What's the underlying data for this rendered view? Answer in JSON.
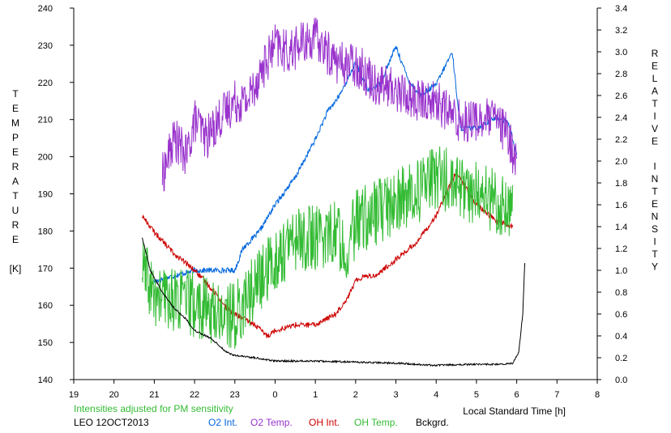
{
  "chart_data": {
    "type": "line",
    "title": "",
    "xlabel": "Local Standard Time [h]",
    "ylabel_left": [
      "T",
      "E",
      "M",
      "P",
      "E",
      "R",
      "A",
      "T",
      "U",
      "R",
      "E",
      "",
      "[K]"
    ],
    "ylabel_right": [
      "R",
      "E",
      "L",
      "A",
      "T",
      "I",
      "V",
      "E",
      "",
      "I",
      "N",
      "T",
      "E",
      "N",
      "S",
      "I",
      "T",
      "Y"
    ],
    "xlim": [
      19,
      32
    ],
    "x_ticks": [
      19,
      20,
      21,
      22,
      23,
      24,
      25,
      26,
      27,
      28,
      29,
      30,
      31,
      32
    ],
    "x_tick_labels": [
      "19",
      "20",
      "21",
      "22",
      "23",
      "0",
      "1",
      "2",
      "3",
      "4",
      "5",
      "6",
      "7",
      "8"
    ],
    "ylim_left": [
      140,
      240
    ],
    "y_ticks_left": [
      140,
      150,
      160,
      170,
      180,
      190,
      200,
      210,
      220,
      230,
      240
    ],
    "y_tick_labels_left": [
      "140",
      "150",
      "160",
      "170",
      "180",
      "190",
      "200",
      "210",
      "220",
      "230",
      "240"
    ],
    "ylim_right": [
      0.0,
      3.4
    ],
    "y_ticks_right": [
      0.0,
      0.2,
      0.4,
      0.6,
      0.8,
      1.0,
      1.2,
      1.4,
      1.6,
      1.8,
      2.0,
      2.2,
      2.4,
      2.6,
      2.8,
      3.0,
      3.2,
      3.4
    ],
    "y_tick_labels_right": [
      "0.0",
      "0.2",
      "0.4",
      "0.6",
      "0.8",
      "1.0",
      "1.2",
      "1.4",
      "1.6",
      "1.8",
      "2.0",
      "2.2",
      "2.4",
      "2.6",
      "2.8",
      "3.0",
      "3.2",
      "3.4"
    ],
    "grid": false,
    "legend_position": "bottom",
    "note": "Intensities adjusted for PM sensitivity",
    "station": "LEO 12OCT2013",
    "series": [
      {
        "name": "O2 Int.",
        "axis": "right",
        "color": "#0066dd",
        "noise": 0.025,
        "x": [
          21.0,
          21.5,
          22.0,
          22.5,
          23.0,
          23.2,
          23.6,
          24.0,
          24.5,
          25.0,
          25.3,
          25.6,
          26.0,
          26.3,
          26.6,
          27.0,
          27.3,
          27.6,
          28.0,
          28.4,
          28.6,
          29.0,
          29.5,
          29.8,
          30.0
        ],
        "y": [
          0.9,
          0.95,
          1.0,
          1.0,
          1.0,
          1.2,
          1.35,
          1.6,
          1.85,
          2.2,
          2.45,
          2.6,
          2.9,
          2.65,
          2.7,
          3.05,
          2.75,
          2.6,
          2.7,
          3.0,
          2.3,
          2.3,
          2.4,
          2.35,
          2.05
        ]
      },
      {
        "name": "O2 Temp.",
        "axis": "left",
        "color": "#9933cc",
        "noise": 6,
        "x": [
          21.2,
          21.5,
          21.8,
          22.0,
          22.3,
          22.6,
          23.0,
          23.3,
          23.6,
          24.0,
          24.3,
          24.6,
          25.0,
          25.3,
          25.6,
          26.0,
          26.5,
          27.0,
          27.5,
          28.0,
          28.5,
          29.0,
          29.5,
          29.8,
          30.0
        ],
        "y": [
          195,
          205,
          200,
          210,
          205,
          210,
          215,
          215,
          222,
          230,
          228,
          230,
          232,
          228,
          225,
          225,
          220,
          218,
          215,
          215,
          210,
          210,
          210,
          205,
          198
        ]
      },
      {
        "name": "OH Int.",
        "axis": "right",
        "color": "#cc0000",
        "noise": 0.025,
        "x": [
          20.7,
          21.0,
          21.5,
          22.0,
          22.5,
          22.8,
          23.0,
          23.5,
          23.8,
          24.0,
          24.5,
          25.0,
          25.5,
          25.8,
          26.0,
          26.2,
          26.5,
          27.0,
          27.5,
          28.0,
          28.5,
          29.0,
          29.5,
          29.9
        ],
        "y": [
          1.5,
          1.35,
          1.15,
          1.0,
          0.8,
          0.65,
          0.6,
          0.5,
          0.4,
          0.45,
          0.5,
          0.5,
          0.6,
          0.75,
          0.9,
          0.95,
          0.95,
          1.1,
          1.25,
          1.5,
          1.9,
          1.6,
          1.45,
          1.4
        ]
      },
      {
        "name": "OH Temp.",
        "axis": "left",
        "color": "#33bb33",
        "noise": 9,
        "x": [
          20.7,
          21.0,
          21.5,
          22.0,
          22.5,
          23.0,
          23.5,
          24.0,
          24.5,
          25.0,
          25.5,
          25.8,
          26.0,
          26.5,
          27.0,
          27.5,
          28.0,
          28.5,
          29.0,
          29.5,
          29.9
        ],
        "y": [
          170,
          162,
          162,
          160,
          158,
          157,
          165,
          172,
          178,
          178,
          180,
          175,
          182,
          185,
          188,
          190,
          195,
          192,
          190,
          188,
          187
        ]
      },
      {
        "name": "Bckgrd.",
        "axis": "right",
        "color": "#000000",
        "noise": 0.008,
        "x": [
          20.7,
          20.9,
          21.2,
          21.5,
          21.8,
          22.0,
          22.4,
          22.8,
          23.0,
          23.5,
          24.0,
          25.0,
          26.0,
          27.0,
          28.0,
          29.0,
          29.6,
          29.9,
          30.05,
          30.15,
          30.2
        ],
        "y": [
          1.3,
          1.0,
          0.8,
          0.65,
          0.55,
          0.45,
          0.38,
          0.25,
          0.22,
          0.2,
          0.17,
          0.17,
          0.16,
          0.15,
          0.13,
          0.14,
          0.14,
          0.15,
          0.25,
          0.6,
          1.07
        ]
      }
    ]
  }
}
